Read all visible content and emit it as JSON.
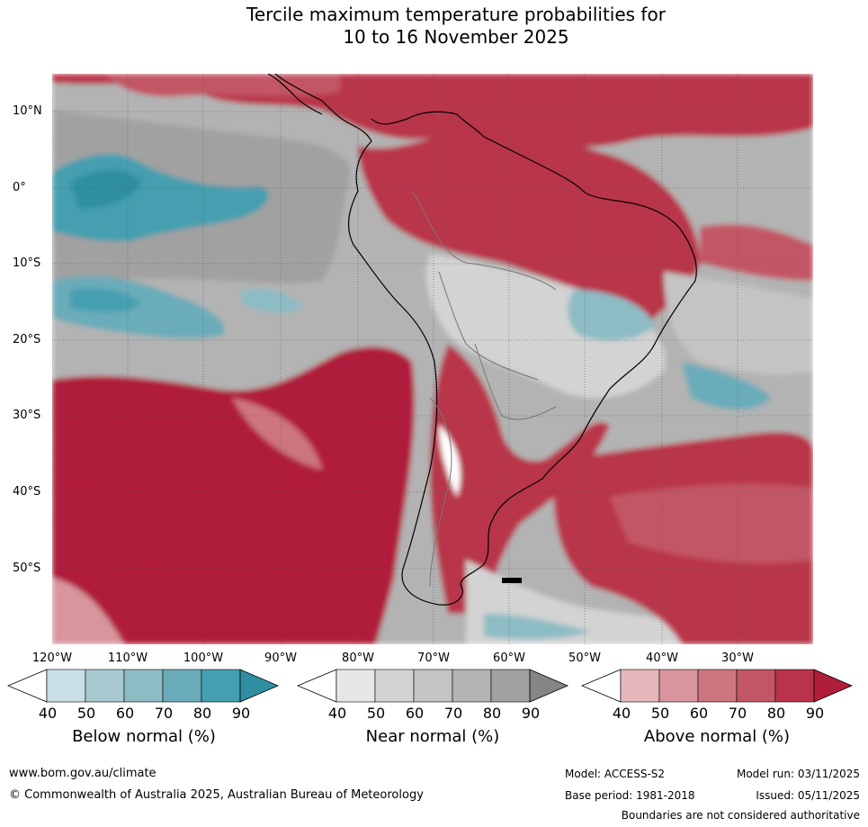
{
  "title": {
    "line1": "Tercile maximum temperature probabilities for",
    "line2": "10 to 16 November 2025"
  },
  "map": {
    "lat_labels": [
      "10°N",
      "0°",
      "10°S",
      "20°S",
      "30°S",
      "40°S",
      "50°S"
    ],
    "lon_labels": [
      "120°W",
      "110°W",
      "100°W",
      "90°W",
      "80°W",
      "70°W",
      "60°W",
      "50°W",
      "40°W",
      "30°W"
    ]
  },
  "legends": [
    {
      "label": "Below normal (%)",
      "ticks": [
        "40",
        "50",
        "60",
        "70",
        "80",
        "90"
      ],
      "colors": [
        "#ffffff",
        "#c9e0e7",
        "#a8c9d0",
        "#8dbcc4",
        "#6aacb9",
        "#449fb0",
        "#2f8ea2"
      ]
    },
    {
      "label": "Near normal (%)",
      "ticks": [
        "40",
        "50",
        "60",
        "70",
        "80",
        "90"
      ],
      "colors": [
        "#ffffff",
        "#e6e6e6",
        "#d3d3d3",
        "#c4c4c4",
        "#b3b3b3",
        "#a1a1a1",
        "#858585"
      ]
    },
    {
      "label": "Above normal (%)",
      "ticks": [
        "40",
        "50",
        "60",
        "70",
        "80",
        "90"
      ],
      "colors": [
        "#ffffff",
        "#e5b7bc",
        "#d8959e",
        "#cd7580",
        "#c25665",
        "#b9344a",
        "#b01d3a"
      ]
    }
  ],
  "footer": {
    "website": "www.bom.gov.au/climate",
    "copyright": "© Commonwealth of Australia 2025, Australian Bureau of Meteorology",
    "model": "Model: ACCESS-S2",
    "base_period": "Base period: 1981-2018",
    "model_run": "Model run: 03/11/2025",
    "issued": "Issued: 05/11/2025",
    "disclaimer": "Boundaries are not considered authoritative"
  }
}
